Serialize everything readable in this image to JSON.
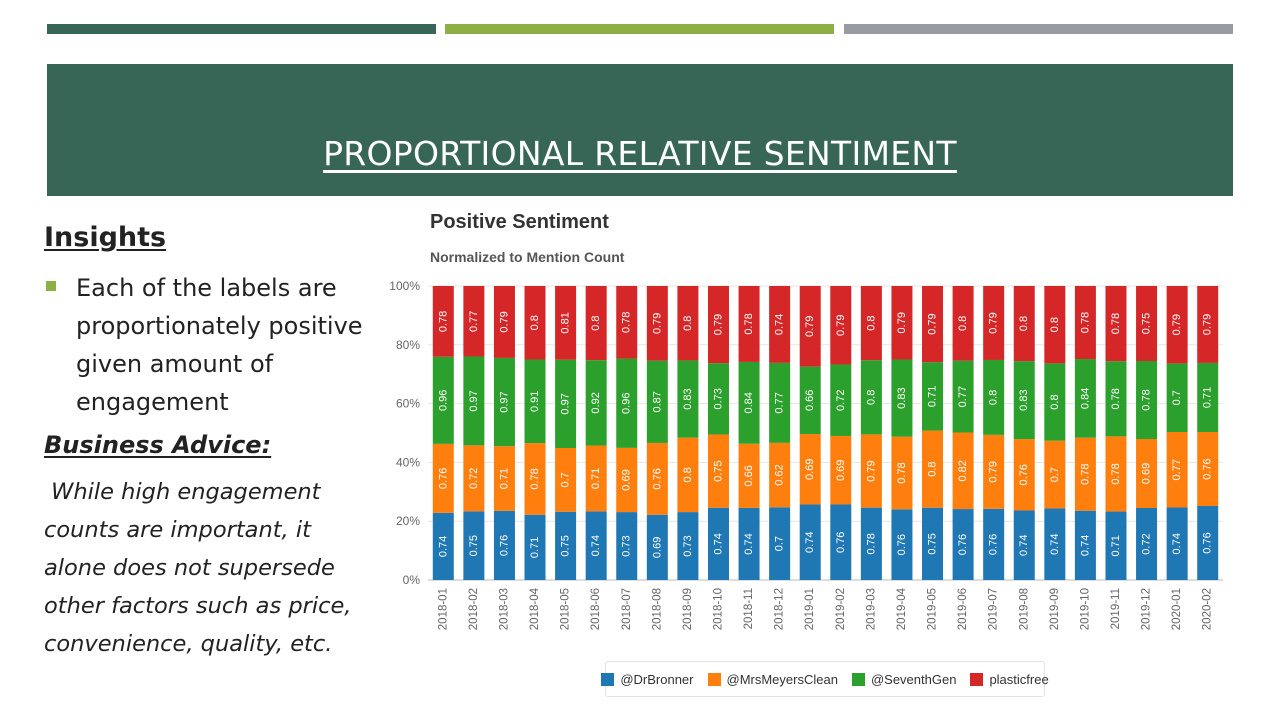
{
  "slide": {
    "title": "PROPORTIONAL RELATIVE SENTIMENT",
    "topbar_colors": [
      "#376656",
      "#8cb043",
      "#979ca3"
    ],
    "title_band_color": "#376656"
  },
  "insights": {
    "heading": "Insights",
    "bullet": "Each of the labels are proportionately positive given amount of engagement",
    "bullet_color": "#8cb043"
  },
  "advice": {
    "heading": "Business Advice:",
    "text": " While high engagement counts are important, it alone does not supersede other factors such as price, convenience, quality, etc."
  },
  "chart_data": {
    "type": "bar",
    "stacked": "percent",
    "title": "Positive Sentiment",
    "subtitle": "Normalized to Mention Count",
    "categories": [
      "2018-01",
      "2018-02",
      "2018-03",
      "2018-04",
      "2018-05",
      "2018-06",
      "2018-07",
      "2018-08",
      "2018-09",
      "2018-10",
      "2018-11",
      "2018-12",
      "2019-01",
      "2019-02",
      "2019-03",
      "2019-04",
      "2019-05",
      "2019-06",
      "2019-07",
      "2019-08",
      "2019-09",
      "2019-10",
      "2019-11",
      "2019-12",
      "2020-01",
      "2020-02"
    ],
    "yticks": [
      "0%",
      "20%",
      "40%",
      "60%",
      "80%",
      "100%"
    ],
    "ylim": [
      0,
      100
    ],
    "grid": true,
    "legend_position": "bottom",
    "series": [
      {
        "name": "@DrBronner",
        "color": "#1f77b4",
        "values": [
          0.74,
          0.75,
          0.76,
          0.71,
          0.75,
          0.74,
          0.73,
          0.69,
          0.73,
          0.74,
          0.74,
          0.7,
          0.74,
          0.76,
          0.78,
          0.76,
          0.75,
          0.76,
          0.76,
          0.74,
          0.74,
          0.74,
          0.71,
          0.72,
          0.74,
          0.76
        ]
      },
      {
        "name": "@MrsMeyersClean",
        "color": "#ff7f0e",
        "values": [
          0.76,
          0.72,
          0.71,
          0.78,
          0.7,
          0.71,
          0.69,
          0.76,
          0.8,
          0.75,
          0.66,
          0.62,
          0.69,
          0.69,
          0.79,
          0.78,
          0.8,
          0.82,
          0.79,
          0.76,
          0.7,
          0.78,
          0.78,
          0.69,
          0.77,
          0.76
        ]
      },
      {
        "name": "@SeventhGen",
        "color": "#2ca02c",
        "values": [
          0.96,
          0.97,
          0.97,
          0.91,
          0.97,
          0.92,
          0.96,
          0.87,
          0.83,
          0.73,
          0.84,
          0.77,
          0.66,
          0.72,
          0.8,
          0.83,
          0.71,
          0.77,
          0.8,
          0.83,
          0.8,
          0.84,
          0.78,
          0.78,
          0.7,
          0.71
        ]
      },
      {
        "name": "plasticfree",
        "color": "#d62728",
        "values": [
          0.78,
          0.77,
          0.79,
          0.8,
          0.81,
          0.8,
          0.78,
          0.79,
          0.8,
          0.79,
          0.78,
          0.74,
          0.79,
          0.79,
          0.8,
          0.79,
          0.79,
          0.8,
          0.79,
          0.8,
          0.8,
          0.78,
          0.78,
          0.75,
          0.79,
          0.79
        ]
      }
    ]
  }
}
